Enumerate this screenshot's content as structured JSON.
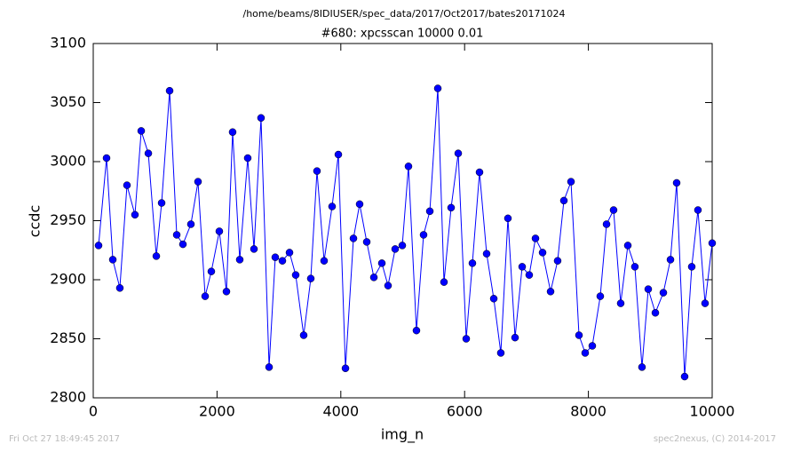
{
  "chart_data": {
    "type": "line",
    "suptitle": "/home/beams/8IDIUSER/spec_data/2017/Oct2017/bates20171024",
    "title": "#680: xpcsscan 10000 0.01",
    "x_label": "img_n",
    "y_label": "ccdc",
    "footer_left": "Fri Oct 27 18:49:45 2017",
    "footer_right": "spec2nexus, (C) 2014-2017",
    "x": [
      86,
      215,
      316,
      430,
      545,
      674,
      775,
      890,
      1019,
      1105,
      1234,
      1349,
      1449,
      1578,
      1693,
      1808,
      1908,
      2037,
      2152,
      2252,
      2367,
      2496,
      2597,
      2711,
      2841,
      2941,
      3056,
      3171,
      3271,
      3400,
      3515,
      3615,
      3730,
      3859,
      3960,
      4075,
      4204,
      4304,
      4419,
      4534,
      4663,
      4763,
      4878,
      4993,
      5093,
      5222,
      5337,
      5438,
      5567,
      5667,
      5782,
      5897,
      6026,
      6126,
      6241,
      6356,
      6471,
      6585,
      6700,
      6815,
      6930,
      7044,
      7145,
      7260,
      7389,
      7503,
      7604,
      7719,
      7848,
      7948,
      8063,
      8192,
      8293,
      8407,
      8522,
      8637,
      8751,
      8866,
      8967,
      9082,
      9211,
      9326,
      9426,
      9555,
      9670,
      9770,
      9885,
      10000
    ],
    "series": [
      {
        "name": "ccdc",
        "color": "#0000ff",
        "values": [
          2929,
          3003,
          2917,
          2893,
          2980,
          2955,
          3026,
          3007,
          2920,
          2965,
          3060,
          2938,
          2930,
          2947,
          2983,
          2886,
          2907,
          2941,
          2890,
          3025,
          2917,
          3003,
          2926,
          3037,
          2826,
          2919,
          2916,
          2923,
          2904,
          2853,
          2901,
          2992,
          2916,
          2962,
          3006,
          2825,
          2935,
          2964,
          2932,
          2902,
          2914,
          2895,
          2926,
          2929,
          2996,
          2857,
          2938,
          2958,
          3062,
          2898,
          2961,
          3007,
          2850,
          2914,
          2991,
          2922,
          2884,
          2838,
          2952,
          2851,
          2911,
          2904,
          2935,
          2923,
          2890,
          2916,
          2967,
          2983,
          2853,
          2838,
          2844,
          2886,
          2947,
          2959,
          2880,
          2929,
          2911,
          2826,
          2892,
          2872,
          2889,
          2917,
          2982,
          2818,
          2911,
          2959,
          2880,
          2931
        ]
      }
    ],
    "xlim": [
      0,
      10000
    ],
    "ylim": [
      2800,
      3100
    ],
    "xticks": [
      0,
      2000,
      4000,
      6000,
      8000,
      10000
    ],
    "yticks": [
      2800,
      2850,
      2900,
      2950,
      3000,
      3050,
      3100
    ],
    "grid": false
  }
}
